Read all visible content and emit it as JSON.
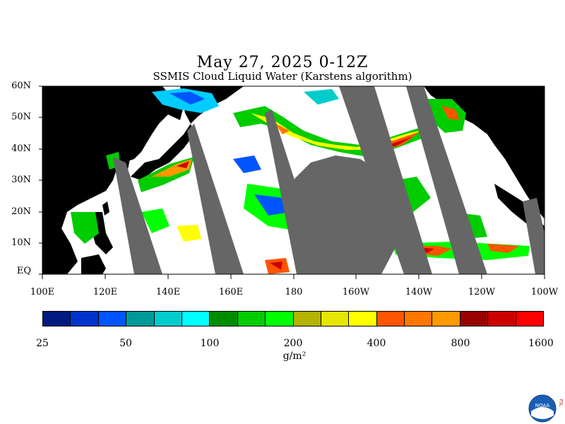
{
  "title": "May 27, 2025 0-12Z",
  "subtitle": "SSMIS Cloud Liquid Water (Karstens algorithm)",
  "lat_labels": [
    "60N",
    "50N",
    "40N",
    "30N",
    "20N",
    "10N",
    "EQ"
  ],
  "lon_labels": [
    "100E",
    "120E",
    "140E",
    "160E",
    "180",
    "160W",
    "140W",
    "120W",
    "100W"
  ],
  "colorbar": {
    "colors": [
      "#001a80",
      "#0033cc",
      "#0055ff",
      "#009999",
      "#00cccc",
      "#00ffff",
      "#008c00",
      "#00cc00",
      "#00ff00",
      "#b3b300",
      "#e6e600",
      "#ffff00",
      "#ff5500",
      "#ff7700",
      "#ff9900",
      "#990000",
      "#cc0000",
      "#ff0000"
    ],
    "labels": [
      "25",
      "50",
      "100",
      "200",
      "400",
      "800",
      "1600"
    ],
    "unit": "g/m²"
  },
  "logo_text": "NOAA",
  "logo_side_text": "PSL",
  "colors": {
    "land": "#000000",
    "swath_gap": "#666666",
    "ocean_clear": "#ffffff"
  }
}
